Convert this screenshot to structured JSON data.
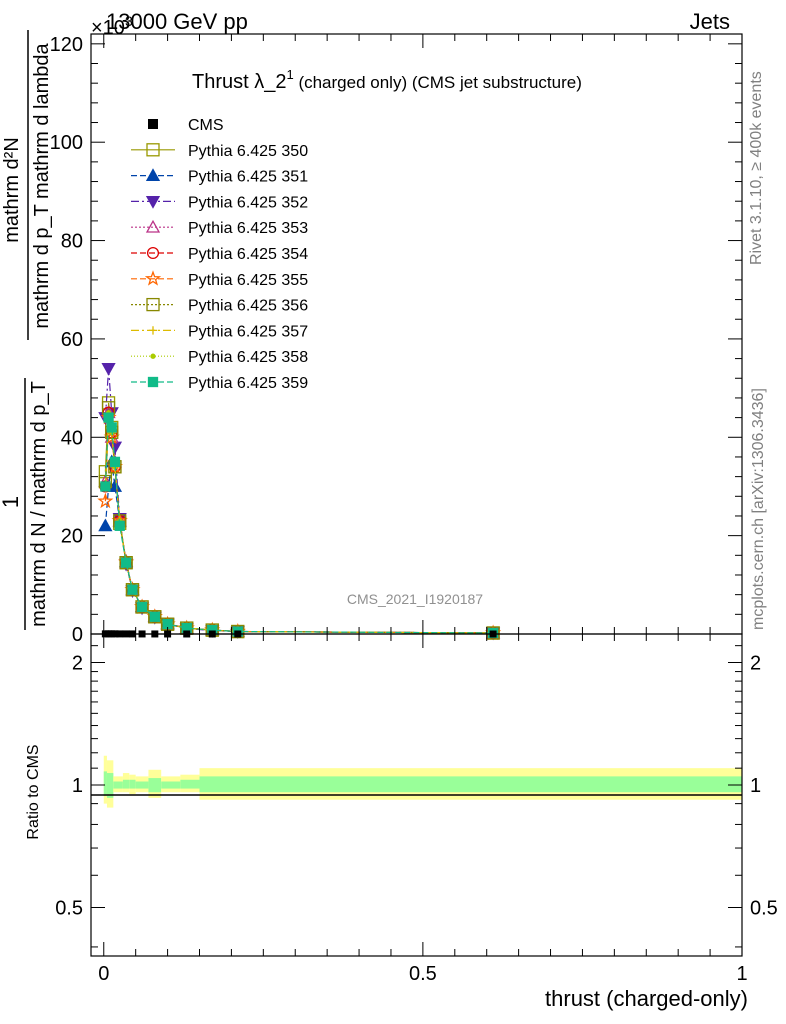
{
  "header": {
    "left": "13000 GeV pp",
    "right": "Jets",
    "scale_exponent": "×10",
    "scale_exponent_power": "3"
  },
  "side_labels": {
    "rivet": "Rivet 3.1.10, ≥ 400k events",
    "mcplots": "mcplots.cern.ch [arXiv:1306.3436]"
  },
  "plot_title": {
    "main": "Thrust λ_2",
    "sup": "1",
    "rest": " (charged only) (CMS jet substructure)"
  },
  "watermark": "CMS_2021_I1920187",
  "y_axis_label": {
    "numerator": "mathrm d²N",
    "denominator": "mathrm d p_T mathrm d lambda",
    "prefix_num": "1",
    "prefix_den": "mathrm d N / mathrm d p_T",
    "full": "1 / (mathrm d N / mathrm d p_T) · mathrm d²N / (mathrm d p_T mathrm d lambda)"
  },
  "ratio_ylabel": "Ratio to CMS",
  "x_axis_label": "thrust (charged-only)",
  "colors": {
    "ref": "#000000",
    "band_outer": "#ffff99",
    "band_inner": "#99ff99"
  },
  "chart_data": [
    {
      "type": "line",
      "title": "Thrust λ_2^1 (charged only) (CMS jet substructure)",
      "xlabel": "thrust (charged-only)",
      "ylabel": "1/(dN/dpT) d²N/(dpT dλ)",
      "y_unit_multiplier": 1000,
      "xlim": [
        -0.02,
        1.0
      ],
      "ylim": [
        0,
        122
      ],
      "x_ticks": [
        0,
        0.5,
        1
      ],
      "x_tick_labels": [
        "0",
        "0.5",
        "1"
      ],
      "y_ticks": [
        0,
        20,
        40,
        60,
        80,
        100,
        120
      ],
      "y_tick_labels": [
        "0",
        "20",
        "40",
        "60",
        "80",
        "100",
        "120"
      ],
      "legend_position": "top-left",
      "reference": {
        "name": "CMS",
        "x": [
          0.0025,
          0.0075,
          0.0125,
          0.0175,
          0.025,
          0.035,
          0.045,
          0.06,
          0.08,
          0.1,
          0.13,
          0.17,
          0.21,
          0.61
        ],
        "y": [
          0.03,
          0.03,
          0.03,
          0.03,
          0.02,
          0.02,
          0.015,
          0.01,
          0.008,
          0.006,
          0.004,
          0.002,
          0.001,
          0.0
        ]
      },
      "series": [
        {
          "name": "Pythia 6.425 350",
          "color": "#999900",
          "dash": "",
          "marker": "square-open",
          "y": [
            33,
            47,
            42,
            34,
            22.5,
            14.5,
            9,
            5.5,
            3.5,
            2,
            1.2,
            0.8,
            0.5,
            0.2
          ]
        },
        {
          "name": "Pythia 6.425 351",
          "color": "#0044aa",
          "dash": "6,3",
          "marker": "triangle-up",
          "y": [
            22,
            30,
            35,
            30,
            23,
            14.8,
            9,
            5.6,
            3.6,
            2.1,
            1.2,
            0.8,
            0.5,
            0.2
          ]
        },
        {
          "name": "Pythia 6.425 352",
          "color": "#5522aa",
          "dash": "8,3,2,3",
          "marker": "triangle-down",
          "y": [
            44,
            54,
            45,
            38,
            23.5,
            14.2,
            8.8,
            5.3,
            3.4,
            2,
            1.1,
            0.7,
            0.5,
            0.2
          ]
        },
        {
          "name": "Pythia 6.425 353",
          "color": "#bb3388",
          "dash": "2,2",
          "marker": "triangle-open",
          "y": [
            31,
            45,
            40,
            35,
            23,
            14.5,
            9,
            5.5,
            3.5,
            2,
            1.2,
            0.8,
            0.5,
            0.2
          ]
        },
        {
          "name": "Pythia 6.425 354",
          "color": "#dd0000",
          "dash": "6,3",
          "marker": "circle-open",
          "y": [
            30,
            45,
            41,
            34,
            23,
            14.6,
            9,
            5.5,
            3.5,
            2,
            1.2,
            0.8,
            0.5,
            0.2
          ]
        },
        {
          "name": "Pythia 6.425 355",
          "color": "#ff6600",
          "dash": "6,3",
          "marker": "star-open",
          "y": [
            27,
            44,
            40,
            34,
            23,
            14.6,
            9,
            5.5,
            3.5,
            2,
            1.2,
            0.8,
            0.5,
            0.2
          ]
        },
        {
          "name": "Pythia 6.425 356",
          "color": "#888800",
          "dash": "2,2",
          "marker": "square-open",
          "y": [
            31,
            46,
            41,
            34,
            23,
            14.5,
            9,
            5.5,
            3.5,
            2,
            1.2,
            0.8,
            0.5,
            0.2
          ]
        },
        {
          "name": "Pythia 6.425 357",
          "color": "#ddbb00",
          "dash": "8,3,2,3",
          "marker": "cross",
          "y": [
            30,
            44,
            41,
            34,
            23,
            14.5,
            9,
            5.5,
            3.5,
            2,
            1.2,
            0.8,
            0.5,
            0.2
          ]
        },
        {
          "name": "Pythia 6.425 358",
          "color": "#aacc00",
          "dash": "1,2",
          "marker": "dot",
          "y": [
            30,
            45,
            41,
            34,
            23,
            14.5,
            9,
            5.5,
            3.5,
            2,
            1.2,
            0.8,
            0.5,
            0.2
          ]
        },
        {
          "name": "Pythia 6.425 359",
          "color": "#11bb88",
          "dash": "6,3",
          "marker": "square-filled",
          "y": [
            30,
            44,
            42,
            35,
            22,
            14.5,
            9,
            5.5,
            3.5,
            2,
            1.2,
            0.8,
            0.5,
            0.2
          ]
        }
      ]
    },
    {
      "type": "area",
      "ylabel": "Ratio to CMS",
      "xlabel": "thrust (charged-only)",
      "xlim": [
        -0.02,
        1.0
      ],
      "ylim": [
        0.38,
        2.35
      ],
      "log_y": true,
      "y_ticks": [
        0.5,
        1,
        2
      ],
      "y_tick_labels": [
        "0.5",
        "1",
        "2"
      ],
      "bins": [
        {
          "x0": 0.0,
          "x1": 0.005,
          "outer": [
            0.9,
            1.18
          ],
          "inner": [
            0.94,
            1.08
          ]
        },
        {
          "x0": 0.005,
          "x1": 0.015,
          "outer": [
            0.88,
            1.15
          ],
          "inner": [
            0.93,
            1.07
          ]
        },
        {
          "x0": 0.015,
          "x1": 0.03,
          "outer": [
            0.96,
            1.05
          ],
          "inner": [
            0.98,
            1.02
          ]
        },
        {
          "x0": 0.03,
          "x1": 0.04,
          "outer": [
            0.96,
            1.07
          ],
          "inner": [
            0.98,
            1.03
          ]
        },
        {
          "x0": 0.04,
          "x1": 0.05,
          "outer": [
            0.95,
            1.06
          ],
          "inner": [
            0.98,
            1.03
          ]
        },
        {
          "x0": 0.05,
          "x1": 0.07,
          "outer": [
            0.96,
            1.05
          ],
          "inner": [
            0.98,
            1.02
          ]
        },
        {
          "x0": 0.07,
          "x1": 0.09,
          "outer": [
            0.93,
            1.09
          ],
          "inner": [
            0.96,
            1.04
          ]
        },
        {
          "x0": 0.09,
          "x1": 0.12,
          "outer": [
            0.96,
            1.05
          ],
          "inner": [
            0.98,
            1.02
          ]
        },
        {
          "x0": 0.12,
          "x1": 0.15,
          "outer": [
            0.96,
            1.06
          ],
          "inner": [
            0.98,
            1.03
          ]
        },
        {
          "x0": 0.15,
          "x1": 1.0,
          "outer": [
            0.92,
            1.1
          ],
          "inner": [
            0.96,
            1.05
          ]
        }
      ]
    }
  ]
}
